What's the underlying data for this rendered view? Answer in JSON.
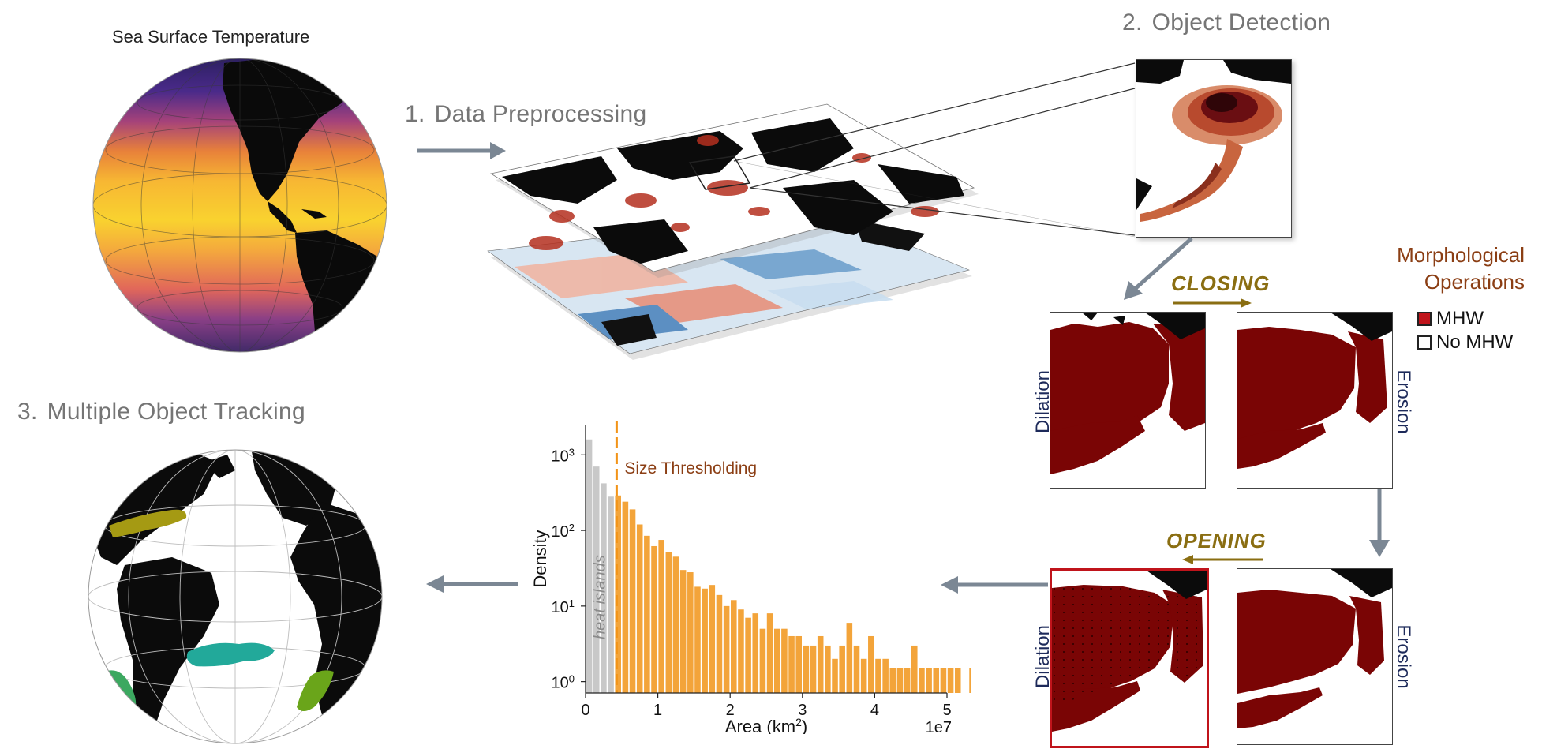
{
  "sst_title": "Sea Surface Temperature",
  "steps": [
    {
      "num": "1.",
      "label": "Data Preprocessing"
    },
    {
      "num": "2.",
      "label": "Object Detection"
    },
    {
      "num": "3.",
      "label": "Multiple Object Tracking"
    }
  ],
  "morphology": {
    "title_line1": "Morphological",
    "title_line2": "Operations",
    "closing_label": "CLOSING",
    "opening_label": "OPENING",
    "dilation_label": "Dilation",
    "erosion_label": "Erosion",
    "legend": [
      {
        "label": "MHW",
        "color": "#c0141b"
      },
      {
        "label": "No MHW",
        "color": "#ffffff"
      }
    ],
    "mhw_color": "#7a0505"
  },
  "colors": {
    "arrow": "#7b8794",
    "orange": "#f3a43a",
    "grey_bar": "#c8c8c8",
    "threshold": "#f29418",
    "highlight_border": "#c0141b"
  },
  "chart_data": {
    "type": "bar",
    "ylabel": "Density",
    "xlabel_main": "Area (km",
    "xlabel_sup": "2",
    "xlabel_end": ")",
    "x_multiplier": "1e7",
    "x_ticks": [
      "0",
      "1",
      "2",
      "3",
      "4",
      "5"
    ],
    "y_ticks": [
      {
        "base": "10",
        "exp": "0"
      },
      {
        "base": "10",
        "exp": "1"
      },
      {
        "base": "10",
        "exp": "2"
      },
      {
        "base": "10",
        "exp": "3"
      }
    ],
    "y_scale": "log",
    "xlim": [
      0,
      5
    ],
    "ylim_log10": [
      -0.15,
      3.4
    ],
    "bin_width": 0.1,
    "threshold_x": 0.43,
    "threshold_label": "Size Thresholding",
    "grey_label": "heat  islands",
    "grey_values": [
      1600,
      700,
      420,
      280
    ],
    "orange_values": [
      290,
      240,
      190,
      120,
      85,
      62,
      75,
      52,
      45,
      30,
      28,
      18,
      17,
      19,
      14,
      10,
      12,
      9,
      7,
      8,
      5,
      8,
      5,
      5,
      4,
      4,
      3,
      3,
      4,
      3,
      2,
      3,
      6,
      3,
      2,
      4,
      2,
      2,
      1.5,
      1.5,
      1.5,
      3,
      1.5,
      1.5,
      1.5,
      1.5,
      1.5,
      1.5,
      0,
      1.5,
      0,
      1.5
    ]
  }
}
